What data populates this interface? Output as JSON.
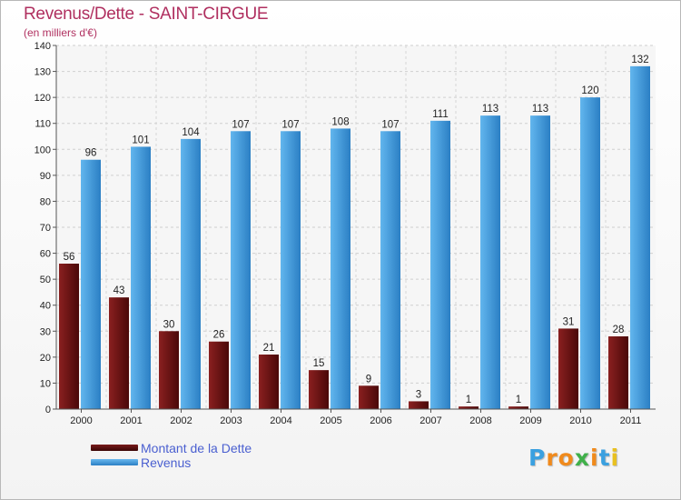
{
  "title": "Revenus/Dette - SAINT-CIRGUE",
  "subtitle": "(en milliers d'€)",
  "logo": {
    "letters": [
      "P",
      "r",
      "o",
      "x",
      "i",
      "t",
      "i"
    ],
    "colors": [
      "#3aa0e0",
      "#f08a1c",
      "#f08a1c",
      "#40b04a",
      "#f08a1c",
      "#3aa0e0",
      "#e8c020"
    ]
  },
  "legend": {
    "position": "bottom-left",
    "debt_label": "Montant de la Dette",
    "revenue_label": "Revenus"
  },
  "colors": {
    "debt": "#7a1a1a",
    "debt_dark": "#4a0808",
    "revenue": "#5aaee8",
    "revenue_dark": "#2b7fc4",
    "title": "#b03060"
  },
  "chart_data": {
    "type": "bar",
    "title": "Revenus/Dette - SAINT-CIRGUE",
    "subtitle": "(en milliers d'€)",
    "xlabel": "",
    "ylabel": "",
    "ylim": [
      0,
      140
    ],
    "yticks": [
      0,
      10,
      20,
      30,
      40,
      50,
      60,
      70,
      80,
      90,
      100,
      110,
      120,
      130,
      140
    ],
    "grid": true,
    "categories": [
      "2000",
      "2001",
      "2002",
      "2003",
      "2004",
      "2005",
      "2006",
      "2007",
      "2008",
      "2009",
      "2010",
      "2011"
    ],
    "series": [
      {
        "name": "Montant de la Dette",
        "values": [
          56,
          43,
          30,
          26,
          21,
          15,
          9,
          3,
          1,
          1,
          31,
          28
        ]
      },
      {
        "name": "Revenus",
        "values": [
          96,
          101,
          104,
          107,
          107,
          108,
          107,
          111,
          113,
          113,
          120,
          132
        ]
      }
    ]
  }
}
